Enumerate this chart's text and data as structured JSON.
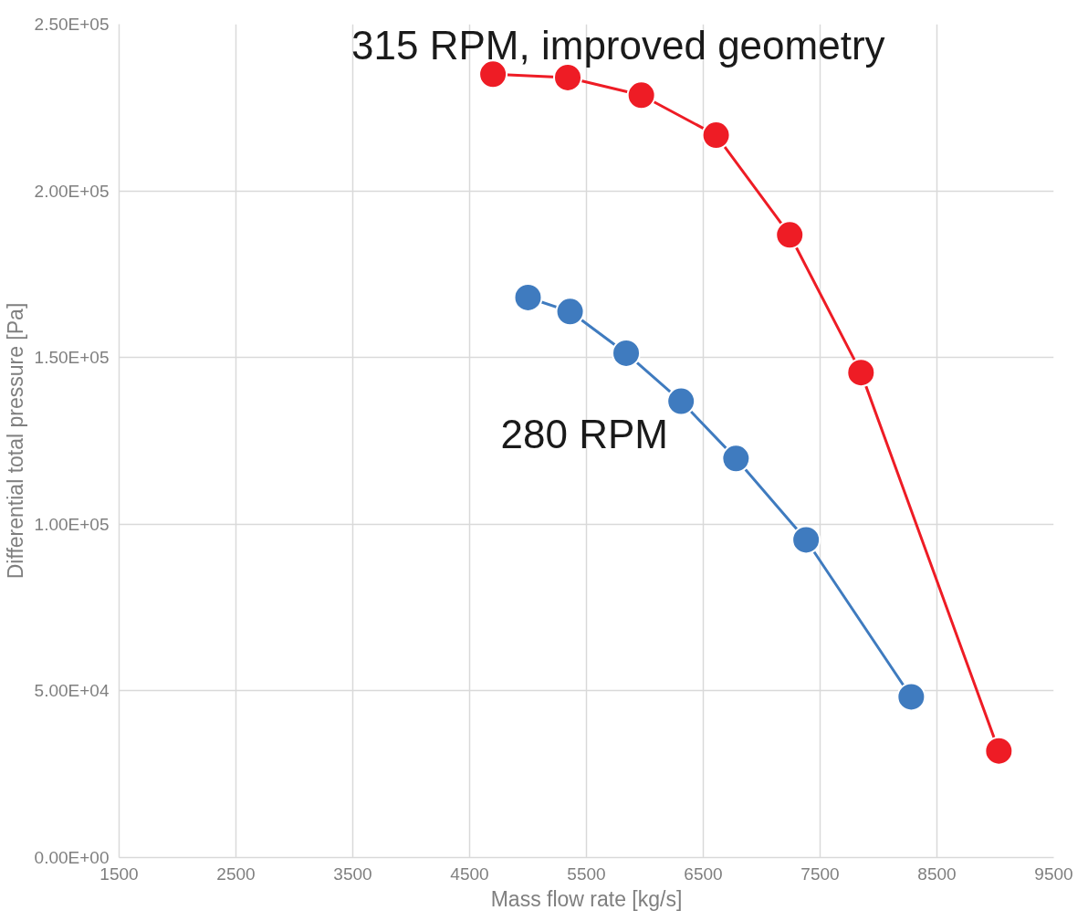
{
  "chart_data": {
    "type": "line",
    "xlabel": "Mass flow rate [kg/s]",
    "ylabel": "Differential total pressure [Pa]",
    "xlim": [
      1500,
      9500
    ],
    "xticks": [
      1500,
      2500,
      3500,
      4500,
      5500,
      6500,
      7500,
      8500,
      9500
    ],
    "ylim": [
      0,
      250000
    ],
    "yticks": [
      {
        "value": 0,
        "label": "0.00E+00"
      },
      {
        "value": 50000,
        "label": "5.00E+04"
      },
      {
        "value": 100000,
        "label": "1.00E+05"
      },
      {
        "value": 150000,
        "label": "1.50E+05"
      },
      {
        "value": 200000,
        "label": "2.00E+05"
      },
      {
        "value": 250000,
        "label": "2.50E+05"
      }
    ],
    "grid": true,
    "marker": "circle",
    "line_style": "solid",
    "series": [
      {
        "name": "315 RPM, improved geometry",
        "color": "#ee1c25",
        "x": [
          4700,
          5340,
          5970,
          6610,
          7240,
          7850,
          9030
        ],
        "values": [
          235000,
          234000,
          228700,
          216700,
          186800,
          145500,
          32000
        ]
      },
      {
        "name": "280 RPM",
        "color": "#3f7bbf",
        "x": [
          5000,
          5360,
          5840,
          6310,
          6780,
          7380,
          8280
        ],
        "values": [
          168000,
          163800,
          151300,
          136900,
          119700,
          95300,
          48200
        ]
      }
    ]
  }
}
